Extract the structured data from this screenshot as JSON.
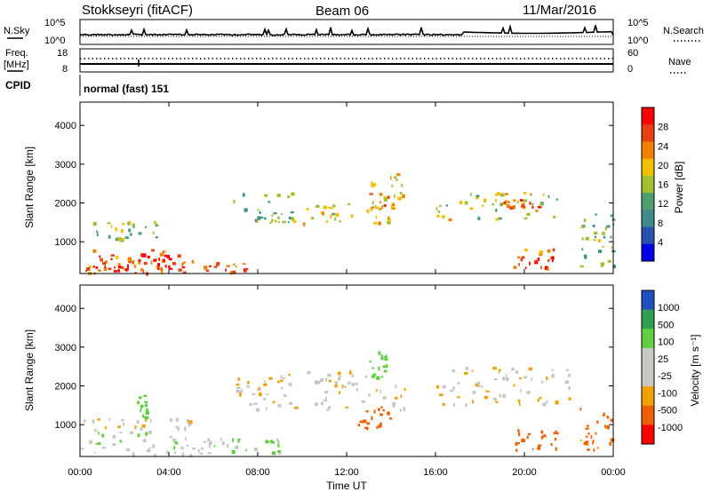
{
  "header": {
    "station": "Stokkseyri (fitACF)",
    "beam": "Beam 06",
    "date": "11/Mar/2016"
  },
  "noise_panel": {
    "left_label": "N.Sky",
    "right_label": "N.Search",
    "left_ticks": [
      "10^5",
      "10^0"
    ],
    "right_ticks": [
      "10^5",
      "10^0"
    ]
  },
  "freq_panel": {
    "left_label_1": "Freq.",
    "left_label_2": "[MHz]",
    "left_ticks": [
      "18",
      "8"
    ],
    "right_label": "Nave",
    "right_ticks": [
      "60",
      "0"
    ]
  },
  "cpid": {
    "label": "CPID",
    "value": "normal (fast) 151"
  },
  "x_axis": {
    "label": "Time UT",
    "ticks": [
      "00:00",
      "04:00",
      "08:00",
      "12:00",
      "16:00",
      "20:00",
      "00:00"
    ]
  },
  "power_panel": {
    "ylabel": "Slant Range [km]",
    "y_ticks": [
      "1000",
      "2000",
      "3000",
      "4000"
    ],
    "colorbar_label": "Power [dB]",
    "colorbar_ticks": [
      "4",
      "8",
      "12",
      "16",
      "20",
      "24",
      "28"
    ]
  },
  "velocity_panel": {
    "ylabel": "Slant Range [km]",
    "y_ticks": [
      "1000",
      "2000",
      "3000",
      "4000"
    ],
    "colorbar_label": "Velocity [m s⁻¹]",
    "colorbar_ticks": [
      "1000",
      "500",
      "100",
      "25",
      "-25",
      "-100",
      "-500",
      "-1000"
    ]
  },
  "colors": {
    "power_scale": [
      "#0000e6",
      "#2a50b0",
      "#3c8c8c",
      "#4ea070",
      "#a0c030",
      "#f0c000",
      "#f08000",
      "#e84010",
      "#ff0000"
    ],
    "velocity_scale": [
      "#ff0000",
      "#f06000",
      "#f0a000",
      "#c8c8c0",
      "#c8c8c0",
      "#60d040",
      "#30a050",
      "#2050c0"
    ]
  },
  "chart_data": [
    {
      "type": "heatmap",
      "title": "Power",
      "xlabel": "Time UT",
      "ylabel": "Slant Range [km]",
      "xlim": [
        0,
        24
      ],
      "ylim": [
        180,
        4600
      ],
      "colorbar": {
        "label": "Power [dB]",
        "range": [
          0,
          30
        ]
      },
      "regions": [
        {
          "t": [
            0.0,
            5.0
          ],
          "r": [
            200,
            850
          ],
          "v": 24
        },
        {
          "t": [
            0.2,
            2.2
          ],
          "r": [
            250,
            450
          ],
          "v": 27
        },
        {
          "t": [
            2.0,
            5.2
          ],
          "r": [
            300,
            700
          ],
          "v": 26
        },
        {
          "t": [
            0.5,
            3.5
          ],
          "r": [
            1000,
            1600
          ],
          "v": 15
        },
        {
          "t": [
            5.5,
            7.5
          ],
          "r": [
            250,
            500
          ],
          "v": 25
        },
        {
          "t": [
            6.8,
            9.5
          ],
          "r": [
            1500,
            2300
          ],
          "v": 13
        },
        {
          "t": [
            9.5,
            14.5
          ],
          "r": [
            1500,
            2000
          ],
          "v": 18
        },
        {
          "t": [
            13.0,
            14.5
          ],
          "r": [
            1800,
            2800
          ],
          "v": 20
        },
        {
          "t": [
            16.0,
            21.5
          ],
          "r": [
            1600,
            2300
          ],
          "v": 16
        },
        {
          "t": [
            19.0,
            20.8
          ],
          "r": [
            1900,
            2100
          ],
          "v": 24
        },
        {
          "t": [
            19.5,
            21.5
          ],
          "r": [
            300,
            900
          ],
          "v": 24
        },
        {
          "t": [
            22.5,
            24.0
          ],
          "r": [
            300,
            1800
          ],
          "v": 12
        }
      ]
    },
    {
      "type": "heatmap",
      "title": "Velocity",
      "xlabel": "Time UT",
      "ylabel": "Slant Range [km]",
      "xlim": [
        0,
        24
      ],
      "ylim": [
        180,
        4600
      ],
      "colorbar": {
        "label": "Velocity [m s⁻¹]",
        "range": [
          -1000,
          1000
        ]
      },
      "regions": [
        {
          "t": [
            0.0,
            6.0
          ],
          "r": [
            200,
            850
          ],
          "v": 60
        },
        {
          "t": [
            0.0,
            5.0
          ],
          "r": [
            850,
            1200
          ],
          "v": 0
        },
        {
          "t": [
            2.5,
            3.0
          ],
          "r": [
            1200,
            1800
          ],
          "v": 400
        },
        {
          "t": [
            6.0,
            9.0
          ],
          "r": [
            300,
            700
          ],
          "v": 100
        },
        {
          "t": [
            7.0,
            15.0
          ],
          "r": [
            1400,
            2400
          ],
          "v": 0
        },
        {
          "t": [
            12.5,
            14.0
          ],
          "r": [
            900,
            1500
          ],
          "v": -300
        },
        {
          "t": [
            13.0,
            13.8
          ],
          "r": [
            2200,
            2900
          ],
          "v": 300
        },
        {
          "t": [
            16.0,
            22.0
          ],
          "r": [
            1500,
            2500
          ],
          "v": 0
        },
        {
          "t": [
            19.5,
            21.5
          ],
          "r": [
            300,
            900
          ],
          "v": -300
        },
        {
          "t": [
            22.5,
            24.0
          ],
          "r": [
            300,
            1500
          ],
          "v": -150
        }
      ]
    }
  ]
}
